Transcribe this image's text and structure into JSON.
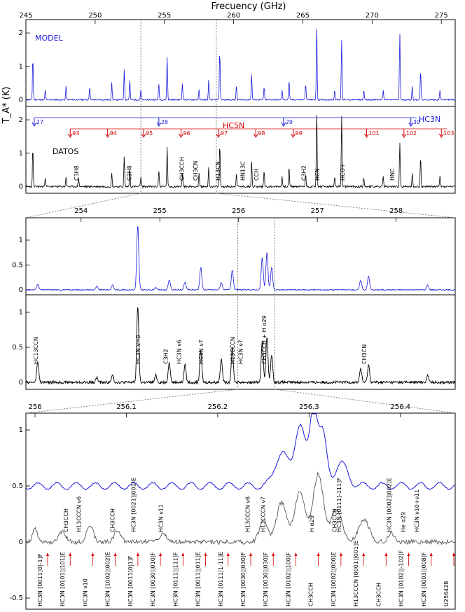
{
  "chart_data": [
    {
      "type": "line",
      "panel": "top-model",
      "xlabel": "Frecuency (GHz)",
      "ylabel": "T_A* (K)",
      "xlim": [
        245,
        276
      ],
      "ylim": [
        -0.2,
        2.4
      ],
      "x_ticks": [
        "245",
        "250",
        "255",
        "260",
        "265",
        "270",
        "275"
      ],
      "y_ticks": [
        "0",
        "1",
        "2"
      ],
      "label": "MODEL",
      "color": "#1a1adb",
      "peaks": [
        {
          "x": 245.5,
          "y": 1.3
        },
        {
          "x": 246.4,
          "y": 0.3
        },
        {
          "x": 247.9,
          "y": 0.4
        },
        {
          "x": 249.6,
          "y": 0.4
        },
        {
          "x": 251.2,
          "y": 0.5
        },
        {
          "x": 252.1,
          "y": 0.9
        },
        {
          "x": 252.5,
          "y": 0.6
        },
        {
          "x": 253.3,
          "y": 0.3
        },
        {
          "x": 254.6,
          "y": 0.5
        },
        {
          "x": 255.2,
          "y": 1.3
        },
        {
          "x": 256.3,
          "y": 0.5
        },
        {
          "x": 257.5,
          "y": 0.3
        },
        {
          "x": 258.2,
          "y": 0.6
        },
        {
          "x": 259.0,
          "y": 1.5
        },
        {
          "x": 260.2,
          "y": 0.4
        },
        {
          "x": 261.3,
          "y": 0.8
        },
        {
          "x": 262.2,
          "y": 0.4
        },
        {
          "x": 263.5,
          "y": 0.3
        },
        {
          "x": 264.0,
          "y": 0.6
        },
        {
          "x": 265.2,
          "y": 0.5
        },
        {
          "x": 266.0,
          "y": 2.3
        },
        {
          "x": 267.3,
          "y": 0.3
        },
        {
          "x": 267.8,
          "y": 1.8
        },
        {
          "x": 269.4,
          "y": 0.3
        },
        {
          "x": 270.8,
          "y": 0.3
        },
        {
          "x": 272.0,
          "y": 2.0
        },
        {
          "x": 272.9,
          "y": 0.4
        },
        {
          "x": 273.5,
          "y": 0.9
        },
        {
          "x": 274.9,
          "y": 0.3
        }
      ]
    },
    {
      "type": "line",
      "panel": "top-observed",
      "xlim": [
        245,
        276
      ],
      "ylim": [
        -0.2,
        2.4
      ],
      "y_ticks": [
        "0",
        "1",
        "2"
      ],
      "label": "DATOS",
      "color": "#000000",
      "series_markers": [
        {
          "name": "HC3N",
          "color": "#1a1adb",
          "items": [
            {
              "x": 245.6,
              "label": "27"
            },
            {
              "x": 254.6,
              "label": "28"
            },
            {
              "x": 263.6,
              "label": "29"
            },
            {
              "x": 272.8,
              "label": "30"
            }
          ]
        },
        {
          "name": "HC5N",
          "color": "#d40000",
          "items": [
            {
              "x": 248.2,
              "label": "93"
            },
            {
              "x": 250.9,
              "label": "94"
            },
            {
              "x": 253.5,
              "label": "95"
            },
            {
              "x": 256.2,
              "label": "96"
            },
            {
              "x": 258.9,
              "label": "97"
            },
            {
              "x": 261.6,
              "label": "98"
            },
            {
              "x": 264.3,
              "label": "99"
            },
            {
              "x": 269.6,
              "label": "101"
            },
            {
              "x": 272.3,
              "label": "102"
            },
            {
              "x": 275.0,
              "label": "103"
            }
          ]
        }
      ],
      "line_labels": [
        {
          "x": 248.8,
          "label": "C3H8"
        },
        {
          "x": 252.6,
          "label": "C3H8"
        },
        {
          "x": 256.4,
          "label": "CH3CCH"
        },
        {
          "x": 257.4,
          "label": "CH3CN"
        },
        {
          "x": 259.0,
          "label": "H13CN"
        },
        {
          "x": 260.8,
          "label": "HN13C"
        },
        {
          "x": 261.8,
          "label": "CCH"
        },
        {
          "x": 265.2,
          "label": "C3H2"
        },
        {
          "x": 266.2,
          "label": "HCN"
        },
        {
          "x": 268.0,
          "label": "HCO+"
        },
        {
          "x": 271.6,
          "label": "HNC"
        }
      ],
      "peaks": [
        {
          "x": 245.5,
          "y": 1.2
        },
        {
          "x": 246.4,
          "y": 0.3
        },
        {
          "x": 247.9,
          "y": 0.3
        },
        {
          "x": 248.8,
          "y": 0.3
        },
        {
          "x": 251.2,
          "y": 0.4
        },
        {
          "x": 252.1,
          "y": 0.9
        },
        {
          "x": 252.5,
          "y": 0.5
        },
        {
          "x": 253.3,
          "y": 0.3
        },
        {
          "x": 254.6,
          "y": 0.5
        },
        {
          "x": 255.2,
          "y": 1.2
        },
        {
          "x": 256.3,
          "y": 0.4
        },
        {
          "x": 257.5,
          "y": 0.4
        },
        {
          "x": 258.2,
          "y": 0.6
        },
        {
          "x": 259.0,
          "y": 1.3
        },
        {
          "x": 260.2,
          "y": 0.4
        },
        {
          "x": 261.3,
          "y": 0.8
        },
        {
          "x": 262.2,
          "y": 0.5
        },
        {
          "x": 263.5,
          "y": 0.3
        },
        {
          "x": 264.0,
          "y": 0.6
        },
        {
          "x": 265.2,
          "y": 0.4
        },
        {
          "x": 266.0,
          "y": 2.3
        },
        {
          "x": 267.3,
          "y": 0.3
        },
        {
          "x": 267.8,
          "y": 2.1
        },
        {
          "x": 269.4,
          "y": 0.3
        },
        {
          "x": 270.8,
          "y": 0.3
        },
        {
          "x": 272.0,
          "y": 1.3
        },
        {
          "x": 272.9,
          "y": 0.4
        },
        {
          "x": 273.5,
          "y": 0.9
        },
        {
          "x": 274.9,
          "y": 0.3
        }
      ]
    },
    {
      "type": "line",
      "panel": "middle-model",
      "xlim": [
        253.3,
        258.75
      ],
      "ylim": [
        -0.1,
        1.45
      ],
      "x_ticks": [
        "254",
        "255",
        "256",
        "257",
        "258"
      ],
      "y_ticks": [
        "0",
        "0.5",
        "1"
      ],
      "color": "#1a1adb",
      "peaks": [
        {
          "x": 253.45,
          "y": 0.12
        },
        {
          "x": 254.2,
          "y": 0.07
        },
        {
          "x": 254.4,
          "y": 0.1
        },
        {
          "x": 254.72,
          "y": 1.3
        },
        {
          "x": 254.95,
          "y": 0.05
        },
        {
          "x": 255.12,
          "y": 0.2
        },
        {
          "x": 255.32,
          "y": 0.15
        },
        {
          "x": 255.52,
          "y": 0.45
        },
        {
          "x": 255.78,
          "y": 0.15
        },
        {
          "x": 255.92,
          "y": 0.4
        },
        {
          "x": 256.3,
          "y": 0.65
        },
        {
          "x": 256.36,
          "y": 0.75
        },
        {
          "x": 256.42,
          "y": 0.45
        },
        {
          "x": 257.55,
          "y": 0.2
        },
        {
          "x": 257.65,
          "y": 0.28
        },
        {
          "x": 258.4,
          "y": 0.1
        }
      ]
    },
    {
      "type": "line",
      "panel": "middle-observed",
      "xlim": [
        253.3,
        258.75
      ],
      "ylim": [
        -0.1,
        1.25
      ],
      "y_ticks": [
        "0",
        "0.5",
        "1"
      ],
      "color": "#000000",
      "line_labels": [
        {
          "x": 253.45,
          "label": "HC13CCN"
        },
        {
          "x": 254.75,
          "label": "HC3N v=0"
        },
        {
          "x": 255.1,
          "label": "C3H2"
        },
        {
          "x": 255.27,
          "label": "HC3N ν6"
        },
        {
          "x": 255.55,
          "label": "HC3N ν7"
        },
        {
          "x": 255.95,
          "label": "H13CCCN"
        },
        {
          "x": 256.05,
          "label": "HC3N ν7"
        },
        {
          "x": 256.35,
          "label": "CH3CCH + H α29"
        },
        {
          "x": 257.62,
          "label": "CH3CN"
        }
      ],
      "peaks": [
        {
          "x": 253.45,
          "y": 0.3
        },
        {
          "x": 254.2,
          "y": 0.07
        },
        {
          "x": 254.4,
          "y": 0.1
        },
        {
          "x": 254.72,
          "y": 1.1
        },
        {
          "x": 254.95,
          "y": 0.1
        },
        {
          "x": 255.12,
          "y": 0.3
        },
        {
          "x": 255.32,
          "y": 0.25
        },
        {
          "x": 255.52,
          "y": 0.45
        },
        {
          "x": 255.78,
          "y": 0.35
        },
        {
          "x": 255.92,
          "y": 0.5
        },
        {
          "x": 256.3,
          "y": 0.6
        },
        {
          "x": 256.36,
          "y": 0.65
        },
        {
          "x": 256.42,
          "y": 0.4
        },
        {
          "x": 257.55,
          "y": 0.2
        },
        {
          "x": 257.65,
          "y": 0.25
        },
        {
          "x": 258.4,
          "y": 0.1
        }
      ]
    },
    {
      "type": "line",
      "panel": "bottom-zoom",
      "xlim": [
        255.99,
        256.46
      ],
      "ylim": [
        -0.6,
        1.15
      ],
      "x_ticks": [
        "256",
        "256.1",
        "256.2",
        "256.3",
        "256.4"
      ],
      "y_ticks": [
        "-0.5",
        "0",
        "0.5",
        "1"
      ],
      "series": [
        {
          "color": "#1a1adb",
          "kind": "model"
        },
        {
          "color": "#555555",
          "kind": "observed"
        }
      ],
      "line_labels": [
        {
          "x": 256.036,
          "label": "CH3CCH"
        },
        {
          "x": 256.05,
          "label": "H13CCCN ν6"
        },
        {
          "x": 256.087,
          "label": "CH3CCH"
        },
        {
          "x": 256.11,
          "label": "HC3N [0021]|001]E"
        },
        {
          "x": 256.14,
          "label": "HC3N ν11"
        },
        {
          "x": 256.235,
          "label": "H13CCCN ν6"
        },
        {
          "x": 256.252,
          "label": "H13CCCN ν7"
        },
        {
          "x": 256.335,
          "label": "HC3N [0111]-111]F"
        },
        {
          "x": 256.39,
          "label": "HC3N [0002]|002]E"
        },
        {
          "x": 256.405,
          "label": "He α29"
        },
        {
          "x": 256.42,
          "label": "HC3N ν10+ν11"
        },
        {
          "x": 256.305,
          "label": "H α29"
        },
        {
          "x": 256.33,
          "label": "CH3CCH"
        }
      ],
      "bottom_labels": [
        "HC3N [0011]0|-1]F",
        "HC3N [0101]|101]E",
        "HC3N ν10",
        "HC3N [1002]|002]E",
        "HC3N [0011]0|1]F",
        "HC3N [0030]|010]F",
        "HC3N [0111]|111]F",
        "HC3N [0011]|011]E",
        "HC3N [0111]1-11]E",
        "HC3N [0030]|030]F",
        "HC3N [0030]|030]F",
        "HC3N [0102]|100]F",
        "CH3CCH",
        "HC3N [0002]|000]E",
        "H13CCCN [0001]|001]E",
        "CH3CCH",
        "HC3N [0102]|-102]F",
        "HC3N [0003]|008]F",
        "U256428"
      ]
    }
  ]
}
